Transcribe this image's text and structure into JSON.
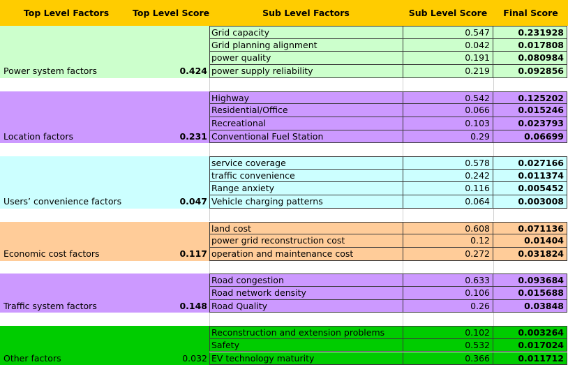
{
  "headers": {
    "top_level_factors": "Top Level Factors",
    "top_level_score": "Top Level Score",
    "sub_level_factors": "Sub Level Factors",
    "sub_level_score": "Sub Level Score",
    "final_score": "Final Score"
  },
  "colors": {
    "header": "#ffcc00",
    "power": "#ccffcc",
    "location": "#cc99ff",
    "users": "#ccffff",
    "economic": "#ffcc99",
    "traffic": "#cc99ff",
    "other": "#00cc00"
  },
  "groups": [
    {
      "key": "power",
      "name": "Power system factors",
      "score": "0.424",
      "score_bold": true,
      "subs": [
        {
          "name": "Grid capacity",
          "score": "0.547",
          "final": "0.231928"
        },
        {
          "name": "Grid planning alignment",
          "score": "0.042",
          "final": "0.017808"
        },
        {
          "name": "power quality",
          "score": "0.191",
          "final": "0.080984"
        },
        {
          "name": "power supply reliability",
          "score": "0.219",
          "final": "0.092856"
        }
      ]
    },
    {
      "key": "location",
      "name": "Location factors",
      "score": "0.231",
      "score_bold": true,
      "subs": [
        {
          "name": "Highway",
          "score": "0.542",
          "final": "0.125202"
        },
        {
          "name": "Residential/Office",
          "score": "0.066",
          "final": "0.015246"
        },
        {
          "name": "Recreational",
          "score": "0.103",
          "final": "0.023793"
        },
        {
          "name": "Conventional Fuel Station",
          "score": "0.29",
          "final": "0.06699"
        }
      ]
    },
    {
      "key": "users",
      "name": "Users’ convenience factors",
      "score": "0.047",
      "score_bold": true,
      "subs": [
        {
          "name": "service coverage",
          "score": "0.578",
          "final": "0.027166"
        },
        {
          "name": "traffic convenience",
          "score": "0.242",
          "final": "0.011374"
        },
        {
          "name": "Range anxiety",
          "score": "0.116",
          "final": "0.005452"
        },
        {
          "name": "Vehicle charging patterns",
          "score": "0.064",
          "final": "0.003008"
        }
      ]
    },
    {
      "key": "economic",
      "name": "Economic cost factors",
      "score": "0.117",
      "score_bold": true,
      "subs": [
        {
          "name": "land cost",
          "score": "0.608",
          "final": "0.071136"
        },
        {
          "name": "power grid reconstruction cost",
          "score": "0.12",
          "final": "0.01404"
        },
        {
          "name": "operation and maintenance cost",
          "score": "0.272",
          "final": "0.031824"
        }
      ]
    },
    {
      "key": "traffic",
      "name": "Traffic system factors",
      "score": "0.148",
      "score_bold": true,
      "subs": [
        {
          "name": "Road congestion",
          "score": "0.633",
          "final": "0.093684"
        },
        {
          "name": "Road network density",
          "score": "0.106",
          "final": "0.015688"
        },
        {
          "name": "Road Quality",
          "score": "0.26",
          "final": "0.03848"
        }
      ]
    },
    {
      "key": "other",
      "name": "Other factors",
      "score": "0.032",
      "score_bold": false,
      "subs": [
        {
          "name": "Reconstruction and extension problems",
          "score": "0.102",
          "final": "0.003264"
        },
        {
          "name": "Safety",
          "score": "0.532",
          "final": "0.017024"
        },
        {
          "name": "EV technology maturity",
          "score": "0.366",
          "final": "0.011712"
        }
      ]
    }
  ]
}
